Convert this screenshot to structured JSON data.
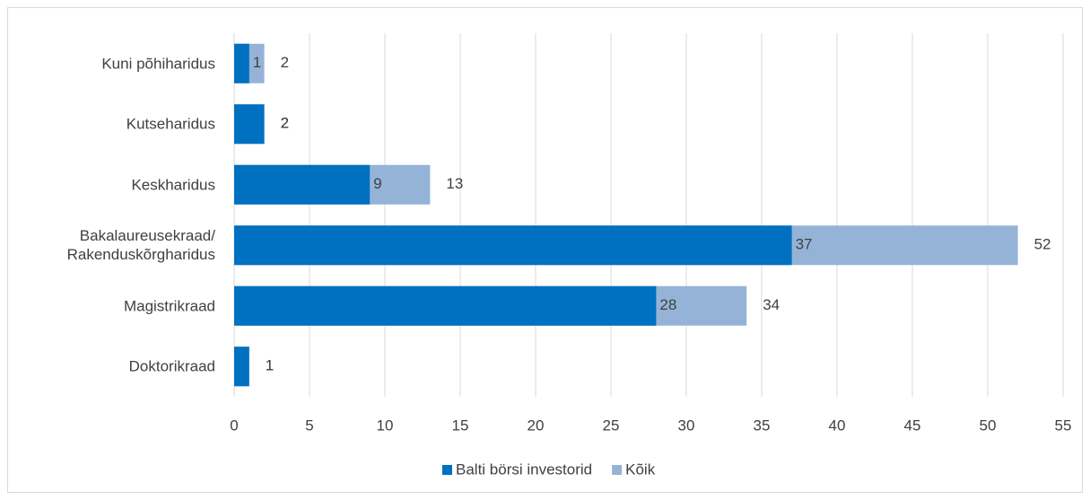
{
  "chart_data": {
    "type": "bar",
    "orientation": "horizontal",
    "overlap": true,
    "categories": [
      "Kuni põhiharidus",
      "Kutseharidus",
      "Keskharidus",
      "Bakalaureusekraad/\nRakenduskõrgharidus",
      "Magistrikraad",
      "Doktorikraad"
    ],
    "series": [
      {
        "name": "Balti börsi investorid",
        "color": "#0070c0",
        "values": [
          1,
          2,
          9,
          37,
          28,
          1
        ]
      },
      {
        "name": "Kõik",
        "color": "#95b3d7",
        "values": [
          2,
          2,
          13,
          52,
          34,
          1
        ]
      }
    ],
    "xlim": [
      0,
      55
    ],
    "xticks": [
      0,
      5,
      10,
      15,
      20,
      25,
      30,
      35,
      40,
      45,
      50,
      55
    ],
    "grid": true,
    "legend": "bottom"
  }
}
